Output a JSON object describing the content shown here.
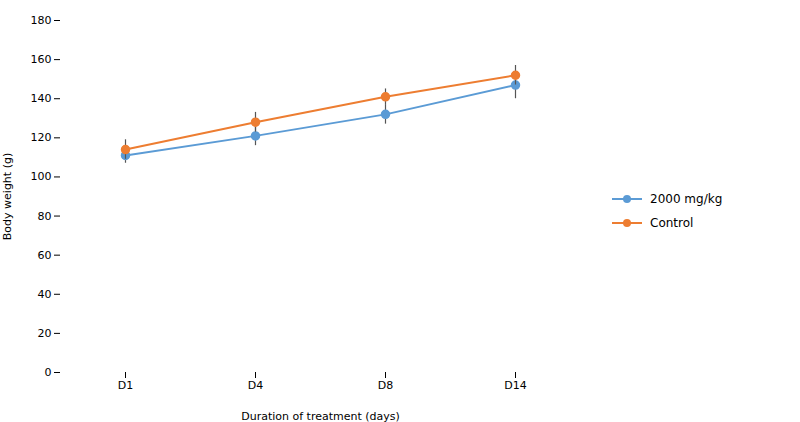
{
  "chart_data": {
    "type": "line",
    "xlabel": "Duration of treatment (days)",
    "ylabel": "Body weight (g)",
    "categories": [
      "D1",
      "D4",
      "D8",
      "D14"
    ],
    "series": [
      {
        "name": "2000 mg/kg",
        "color": "#5B9BD5",
        "values": [
          111,
          121,
          132,
          147
        ],
        "yerr": [
          4,
          5,
          5,
          7
        ]
      },
      {
        "name": "Control",
        "color": "#ED7D31",
        "values": [
          114,
          128,
          141,
          152
        ],
        "yerr": [
          5,
          5,
          4,
          5
        ]
      }
    ],
    "ylim": [
      0,
      180
    ],
    "yticks": [
      0,
      20,
      40,
      60,
      80,
      100,
      120,
      140,
      160,
      180
    ],
    "marker": "circle",
    "grid": false,
    "legend": "right"
  }
}
